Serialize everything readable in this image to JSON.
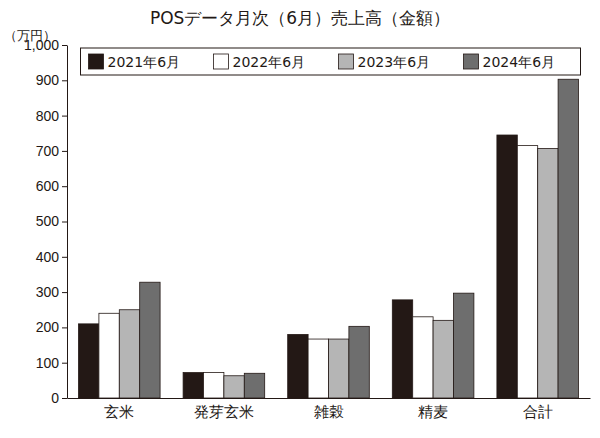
{
  "chart_data": {
    "type": "bar",
    "title": "POSデータ月次（6月）売上高（金額）",
    "y_label": "（万円）",
    "categories": [
      "玄米",
      "発芽玄米",
      "雑穀",
      "精麦",
      "合計"
    ],
    "series": [
      {
        "name": "2021年6月",
        "color": "#231815",
        "values": [
          210,
          72,
          180,
          278,
          745
        ]
      },
      {
        "name": "2022年6月",
        "color": "#ffffff",
        "values": [
          240,
          72,
          167,
          230,
          715
        ]
      },
      {
        "name": "2023年6月",
        "color": "#b5b5b5",
        "values": [
          250,
          63,
          167,
          220,
          707
        ]
      },
      {
        "name": "2024年6月",
        "color": "#6e6e6e",
        "values": [
          328,
          70,
          203,
          297,
          903
        ]
      }
    ],
    "ylim": [
      0,
      1000
    ],
    "yticks": [
      0,
      100,
      200,
      300,
      400,
      500,
      600,
      700,
      800,
      900,
      {
        "value": 1000,
        "label": "1,000"
      }
    ],
    "grid": false,
    "legend": "top"
  }
}
